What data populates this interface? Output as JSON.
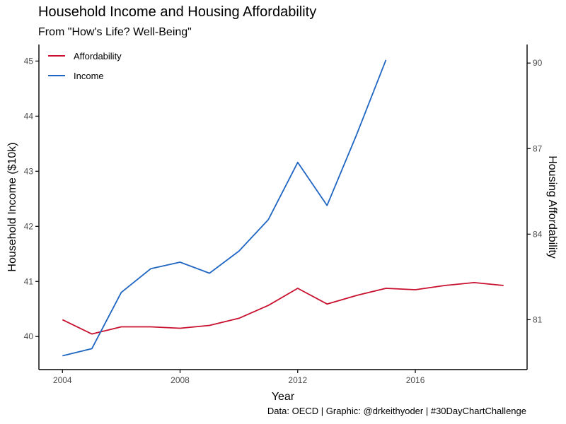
{
  "chart_data": {
    "type": "line",
    "title": "Household Income and Housing Affordability",
    "subtitle": "From \"How's Life? Well-Being\"",
    "caption": "Data: OECD | Graphic: @drkeithyoder | #30DayChartChallenge",
    "xlabel": "Year",
    "ylabel_left": "Household Income ($10k)",
    "ylabel_right": "Housing Affordability",
    "x_ticks": [
      2004,
      2008,
      2012,
      2016
    ],
    "y_left_ticks": [
      40,
      41,
      42,
      43,
      44,
      45
    ],
    "y_right_ticks": [
      81,
      84,
      87,
      90
    ],
    "xlim": [
      2003.2,
      2019.8
    ],
    "ylim_left": [
      39.4,
      45.3
    ],
    "ylim_right": [
      79.25,
      90.65
    ],
    "grid": false,
    "legend_position": "top-left",
    "series": [
      {
        "name": "Affordability",
        "axis": "right",
        "color": "#c8102e",
        "x": [
          2004,
          2005,
          2006,
          2007,
          2008,
          2009,
          2010,
          2011,
          2012,
          2013,
          2014,
          2015,
          2016,
          2017,
          2018,
          2019
        ],
        "values": [
          81.0,
          80.5,
          80.75,
          80.75,
          80.7,
          80.8,
          81.05,
          81.5,
          82.1,
          81.55,
          81.85,
          82.1,
          82.05,
          82.2,
          82.3,
          82.2
        ]
      },
      {
        "name": "Income",
        "axis": "left",
        "color": "#1f65c2",
        "x": [
          2004,
          2005,
          2006,
          2007,
          2008,
          2009,
          2010,
          2011,
          2012,
          2013,
          2014,
          2015
        ],
        "values": [
          39.65,
          39.78,
          40.8,
          41.23,
          41.35,
          41.15,
          41.55,
          42.12,
          43.16,
          42.38,
          43.66,
          45.02
        ]
      }
    ]
  }
}
